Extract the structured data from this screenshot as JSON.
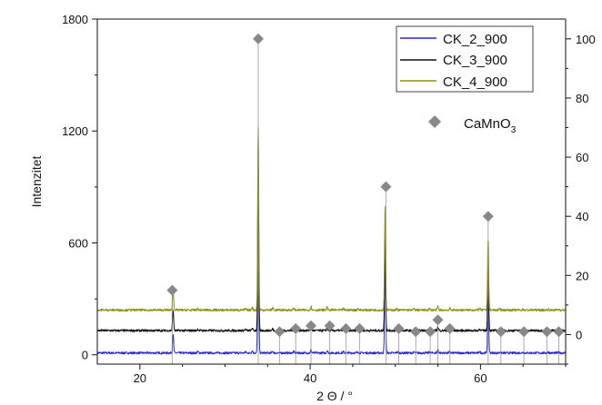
{
  "chart_data": {
    "type": "line",
    "title": "",
    "xlabel": "2 Θ / °",
    "ylabel": "Intenzitet",
    "xlim": [
      15,
      70
    ],
    "ylim_left": [
      -50,
      1800
    ],
    "ylim_right": [
      -10,
      106.7
    ],
    "x_ticks": [
      "20",
      "40",
      "60"
    ],
    "y_ticks_left": [
      "0",
      "600",
      "1200",
      "1800"
    ],
    "y_ticks_right": [
      "0",
      "20",
      "40",
      "60",
      "80",
      "100"
    ],
    "grid": false,
    "legend_position": "top-right",
    "baseline_offsets": [
      0,
      120,
      230
    ],
    "reflections": [
      {
        "x": 23.9,
        "h": 1000
      },
      {
        "x": 26.8,
        "h": 70
      },
      {
        "x": 32.4,
        "h": 60
      },
      {
        "x": 33.2,
        "h": 120
      },
      {
        "x": 33.9,
        "h": 8200
      },
      {
        "x": 35.6,
        "h": 90
      },
      {
        "x": 38.1,
        "h": 80
      },
      {
        "x": 40.1,
        "h": 160
      },
      {
        "x": 42.0,
        "h": 130
      },
      {
        "x": 43.9,
        "h": 60
      },
      {
        "x": 45.6,
        "h": 70
      },
      {
        "x": 48.8,
        "h": 4700
      },
      {
        "x": 50.2,
        "h": 60
      },
      {
        "x": 52.2,
        "h": 50
      },
      {
        "x": 54.0,
        "h": 60
      },
      {
        "x": 55.0,
        "h": 180
      },
      {
        "x": 56.4,
        "h": 70
      },
      {
        "x": 59.9,
        "h": 90
      },
      {
        "x": 60.9,
        "h": 3200
      },
      {
        "x": 62.3,
        "h": 50
      },
      {
        "x": 65.0,
        "h": 40
      },
      {
        "x": 68.0,
        "h": 40
      },
      {
        "x": 69.2,
        "h": 40
      }
    ],
    "series": [
      {
        "name": "CK_2_900",
        "color": "#2a2ad0",
        "peak_scale": 0.84
      },
      {
        "name": "CK_3_900",
        "color": "#111111",
        "peak_scale": 0.92
      },
      {
        "name": "CK_4_900",
        "color": "#8e8e14",
        "peak_scale": 1.0
      }
    ],
    "reference": {
      "name": "CaMnO3",
      "name_main": "CaMnO",
      "name_sub": "3",
      "color": "#888888",
      "marker": "diamond",
      "axis": "right",
      "points": [
        {
          "x": 23.8,
          "y": 15
        },
        {
          "x": 33.9,
          "y": 100
        },
        {
          "x": 36.4,
          "y": 1
        },
        {
          "x": 38.3,
          "y": 2
        },
        {
          "x": 40.1,
          "y": 3
        },
        {
          "x": 42.3,
          "y": 3
        },
        {
          "x": 44.2,
          "y": 2
        },
        {
          "x": 45.8,
          "y": 2
        },
        {
          "x": 48.9,
          "y": 50
        },
        {
          "x": 50.4,
          "y": 2
        },
        {
          "x": 52.4,
          "y": 1
        },
        {
          "x": 54.1,
          "y": 1
        },
        {
          "x": 55.0,
          "y": 5
        },
        {
          "x": 56.4,
          "y": 2
        },
        {
          "x": 60.9,
          "y": 40
        },
        {
          "x": 62.4,
          "y": 1
        },
        {
          "x": 65.1,
          "y": 1
        },
        {
          "x": 67.8,
          "y": 1
        },
        {
          "x": 69.2,
          "y": 1
        }
      ]
    }
  }
}
